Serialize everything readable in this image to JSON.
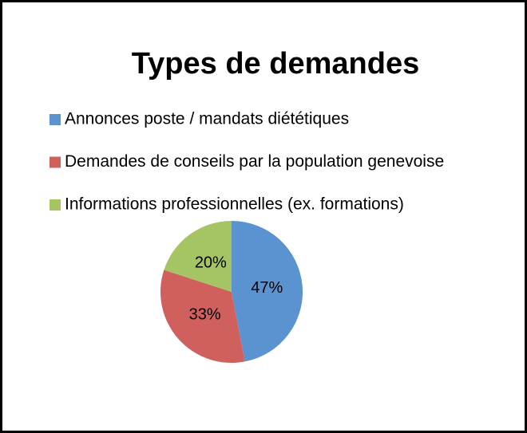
{
  "chart_data": {
    "type": "pie",
    "title": "Types de demandes",
    "categories": [
      "Annonces poste / mandats diététiques",
      "Demandes de conseils par la population genevoise",
      "Informations professionnelles (ex. formations)"
    ],
    "values": [
      47,
      33,
      20
    ],
    "value_labels": [
      "47%",
      "33%",
      "20%"
    ],
    "colors": [
      "#5b93d0",
      "#d0605d",
      "#a5c564"
    ],
    "legend": "top"
  }
}
